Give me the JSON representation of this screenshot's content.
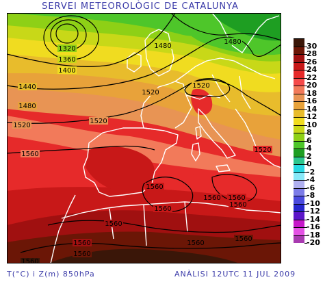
{
  "title": "SERVEI METEOROLÒGIC DE CATALUNYA",
  "footer": {
    "left": "T(°C) i Z(m) 850hPa",
    "right": "ANÀLISI 12UTC 11 JUL 2009"
  },
  "legend": {
    "labels": [
      "30",
      "28",
      "26",
      "24",
      "22",
      "20",
      "18",
      "16",
      "14",
      "12",
      "10",
      "8",
      "6",
      "4",
      "2",
      "0",
      "-2",
      "-4",
      "-6",
      "-8",
      "-10",
      "-12",
      "-14",
      "-16",
      "-18",
      "-20"
    ],
    "colors": [
      "#3a1608",
      "#6b1606",
      "#a01010",
      "#c81818",
      "#e62a2a",
      "#f54a4a",
      "#f27a5a",
      "#e89454",
      "#e8a23a",
      "#e8bc2c",
      "#f0dc20",
      "#c8d818",
      "#8ed016",
      "#4ec62a",
      "#1e9e22",
      "#2cc68e",
      "#27d8e2",
      "#88e8f8",
      "#b0b0f0",
      "#7c7ce8",
      "#4a4ade",
      "#2626ce",
      "#5c16c8",
      "#c618c8",
      "#e452e4",
      "#a83ab0"
    ]
  },
  "contour_labels": [
    "1320",
    "1360",
    "1400",
    "1440",
    "1480",
    "1480",
    "1480",
    "1520",
    "1520",
    "1520",
    "1520",
    "1520",
    "1560",
    "1560",
    "1560",
    "1560",
    "1560",
    "1560",
    "1560",
    "1560",
    "1560",
    "1560",
    "1560",
    "1560"
  ]
}
